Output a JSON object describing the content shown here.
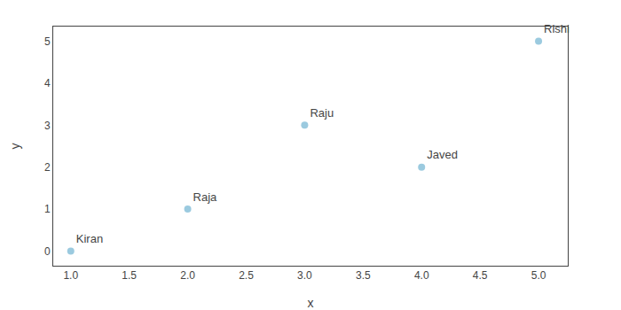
{
  "chart_data": {
    "type": "scatter",
    "x": [
      1,
      2,
      3,
      4,
      5
    ],
    "y": [
      0,
      1,
      3,
      2,
      5
    ],
    "labels": [
      "Kiran",
      "Raja",
      "Raju",
      "Javed",
      "Rishi"
    ],
    "color": "#7ab8d4",
    "marker": "circle",
    "xlabel": "x",
    "ylabel": "y",
    "xlim": [
      0.85,
      5.25
    ],
    "ylim": [
      -0.35,
      5.35
    ],
    "xticks": [
      {
        "value": 1,
        "label": "1.0"
      },
      1.5,
      {
        "value": 2,
        "label": "2.0"
      },
      2.5,
      {
        "value": 3,
        "label": "3.0"
      },
      3.5,
      {
        "value": 4,
        "label": "4.0"
      },
      4.5,
      {
        "value": 5,
        "label": "5.0"
      }
    ],
    "yticks": [
      0,
      1,
      2,
      3,
      4,
      5
    ],
    "grid": false
  }
}
